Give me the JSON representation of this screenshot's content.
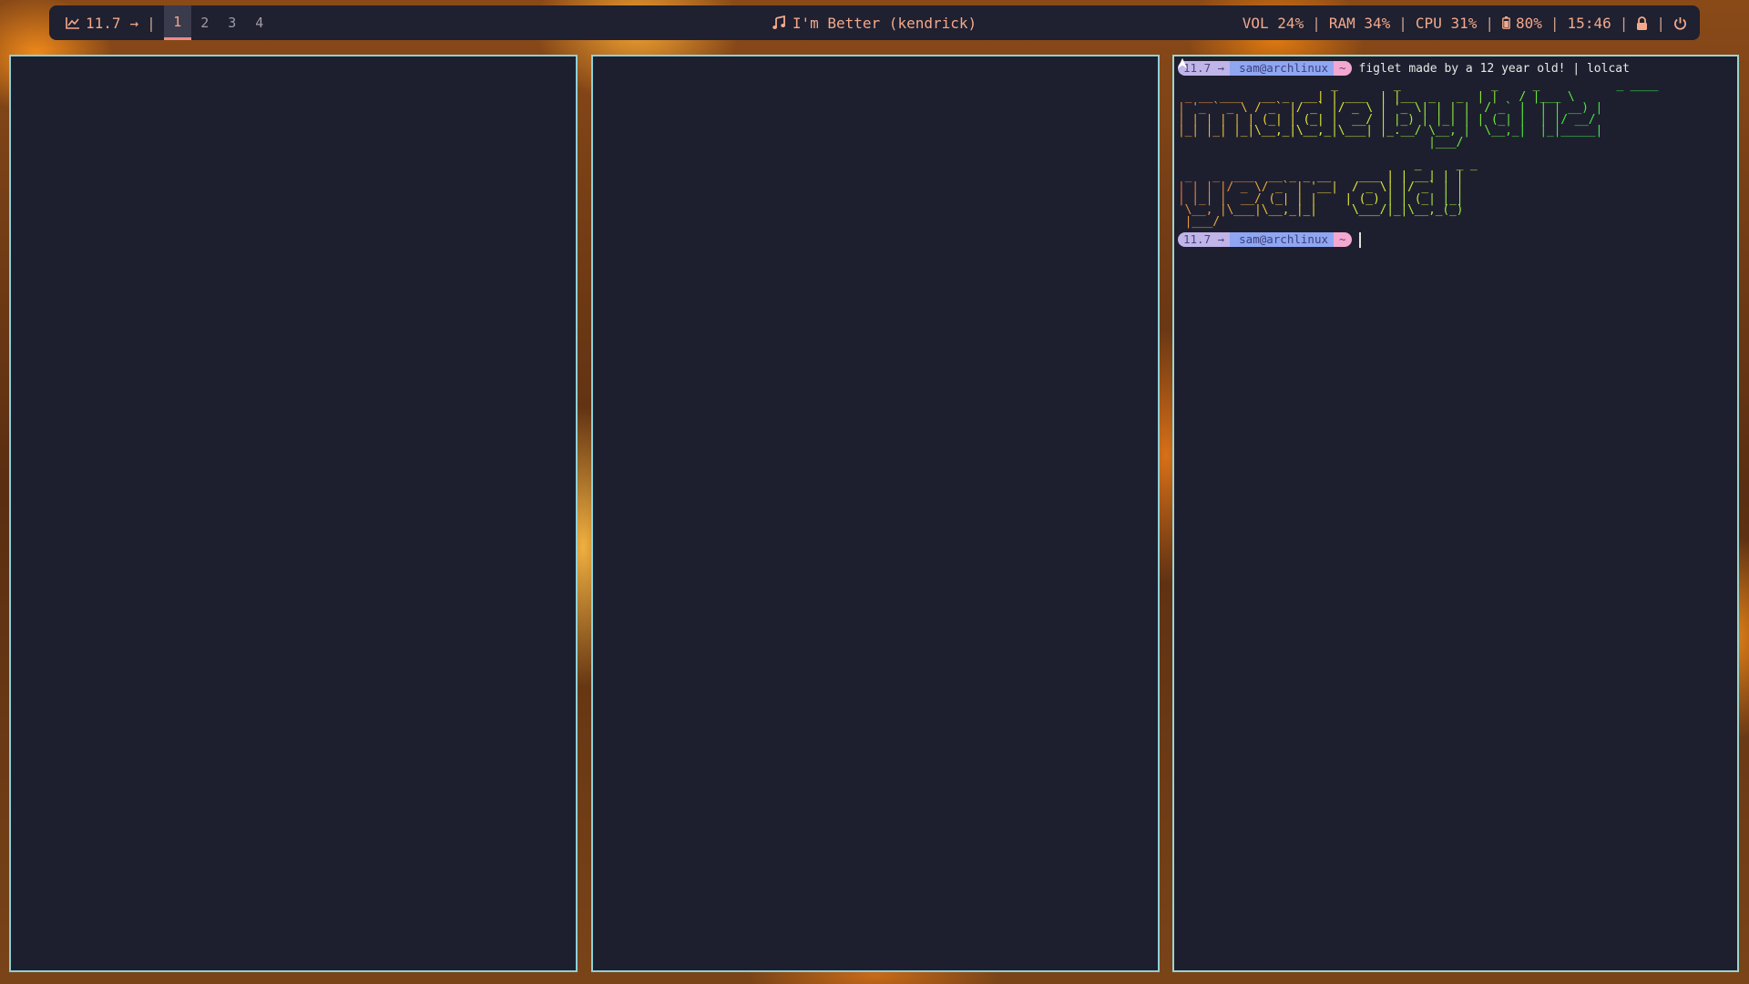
{
  "colors": {
    "bar_bg": "#1f2030",
    "bar_text": "#f2a98b",
    "window_bg": "#1e1f2e",
    "window_border": "#8fcfd8",
    "blob_red": "#f0203a",
    "blob_pink": "#ff9a9a"
  },
  "bar": {
    "stat_icon": "line-chart-icon",
    "stat_value": "11.7",
    "arrow": "→",
    "sep": "|",
    "workspaces": [
      "1",
      "2",
      "3",
      "4"
    ],
    "active_workspace": "1",
    "music_icon": "music-note-icon",
    "now_playing": "I'm Better (kendrick)",
    "vol": "VOL 24%",
    "ram": "RAM 34%",
    "cpu": "CPU 31%",
    "battery_icon": "battery-icon",
    "battery": "80%",
    "time": "15:46",
    "lock_icon": "lock-icon",
    "power_icon": "power-icon"
  },
  "terminal": {
    "prompt_time": "11.7 →",
    "arch_icon": "arch-logo-icon",
    "prompt_user": "sam@archlinux",
    "prompt_dir": "~",
    "command": "figlet made by a 12 year old! | lolcat",
    "art_line1": [
      "                      _        _             _     _           _ ____  ",
      " _ __ ___   __ _  __| | ___  | |__  _   _  | |   / |___ \\ ",
      "| '_ ` _ \\ / _` |/ _` |/ _ \\ | '_ \\| | | |  / _` |  | | __) |",
      "| | | | | | (_| | (_| |  __/ | |_) | |_| | | (_| |  | |/ __/ ",
      "|_| |_| |_|\\__,_|\\__,_|\\___| |_.__/ \\__, |  \\__,_|  |_|_____|",
      "                                    |___/                    "
    ],
    "art_line2": [
      "                                  _     _ _ ",
      " _   _  ___  __ _ _ __    ___ | | __| | |",
      "| | | |/ _ \\/ _` | '__|  / _ \\| |/ _` | |",
      "| |_| |  __/ (_| | |    | (_) | | (_| |_|",
      " \\__, |\\___|\\__,_|_|     \\___/|_|\\__,_(_)",
      " |___/                                    "
    ]
  }
}
